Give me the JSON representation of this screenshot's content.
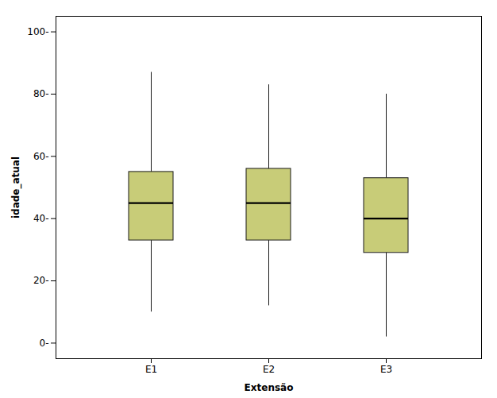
{
  "chart_data": {
    "type": "box",
    "categories": [
      "E1",
      "E2",
      "E3"
    ],
    "boxes": [
      {
        "whisker_low": 10,
        "q1": 33,
        "median": 45,
        "q3": 55,
        "whisker_high": 87
      },
      {
        "whisker_low": 12,
        "q1": 33,
        "median": 45,
        "q3": 56,
        "whisker_high": 83
      },
      {
        "whisker_low": 2,
        "q1": 29,
        "median": 40,
        "q3": 53,
        "whisker_high": 80
      }
    ],
    "color": "#c8cc78",
    "xlabel": "Extensão",
    "ylabel": "idade_atual",
    "ylim": [
      -5,
      105
    ],
    "yticks": [
      {
        "value": 0,
        "label": "0-"
      },
      {
        "value": 20,
        "label": "20-"
      },
      {
        "value": 40,
        "label": "40-"
      },
      {
        "value": 60,
        "label": "60-"
      },
      {
        "value": 80,
        "label": "80-"
      },
      {
        "value": 100,
        "label": "100-"
      }
    ],
    "grid": false
  }
}
